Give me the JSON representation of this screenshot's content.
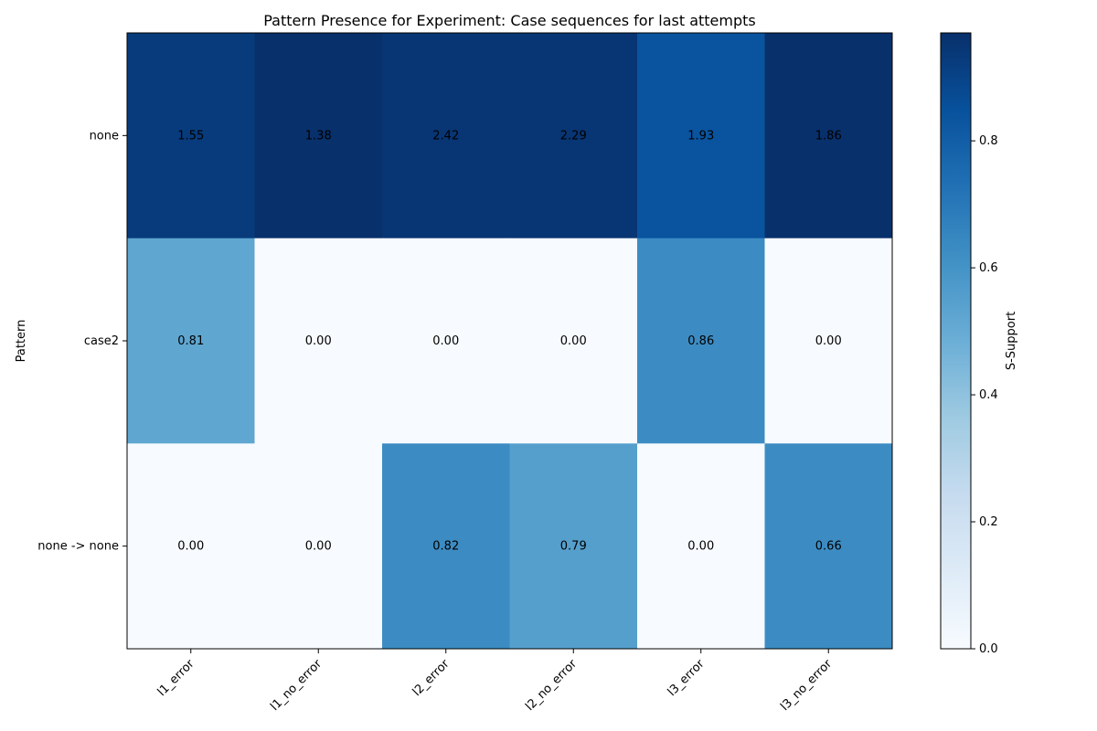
{
  "chart_data": {
    "type": "heatmap",
    "title": "Pattern Presence for Experiment: Case sequences for last attempts",
    "xlabel": "",
    "ylabel": "Pattern",
    "colorbar_label": "S-Support",
    "colormap": "Blues",
    "x_categories": [
      "l1_error",
      "l1_no_error",
      "l2_error",
      "l2_no_error",
      "l3_error",
      "l3_no_error"
    ],
    "y_categories": [
      "none",
      "case2",
      "none -> none"
    ],
    "cell_labels": [
      [
        "1.55",
        "1.38",
        "2.42",
        "2.29",
        "1.93",
        "1.86"
      ],
      [
        "0.81",
        "0.00",
        "0.00",
        "0.00",
        "0.86",
        "0.00"
      ],
      [
        "0.00",
        "0.00",
        "0.82",
        "0.79",
        "0.00",
        "0.66"
      ]
    ],
    "color_values": [
      [
        0.93,
        0.97,
        0.95,
        0.95,
        0.84,
        0.97
      ],
      [
        0.52,
        0.0,
        0.0,
        0.0,
        0.63,
        0.0
      ],
      [
        0.0,
        0.0,
        0.63,
        0.55,
        0.0,
        0.63
      ]
    ],
    "colorbar_range": [
      0,
      0.97
    ],
    "colorbar_ticks": [
      "0.0",
      "0.2",
      "0.4",
      "0.6",
      "0.8"
    ],
    "colorbar_tick_values": [
      0,
      0.2,
      0.4,
      0.6,
      0.8
    ],
    "grid": false,
    "legend": "colorbar-right"
  }
}
